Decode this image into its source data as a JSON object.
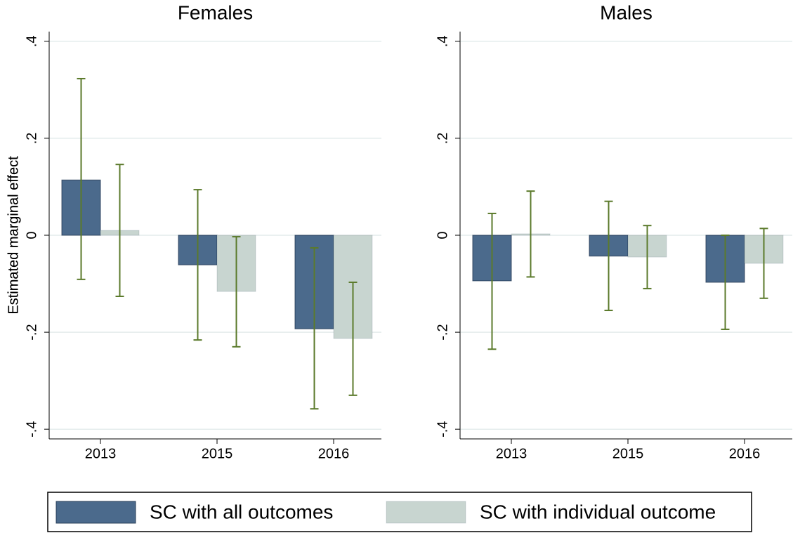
{
  "chart_data": [
    {
      "type": "bar",
      "title": "Females",
      "y_label": "Estimated marginal effect",
      "categories": [
        "2013",
        "2015",
        "2016"
      ],
      "series": [
        {
          "name": "SC with all outcomes",
          "color": "#4b6a8c",
          "values": [
            0.114,
            -0.061,
            -0.193
          ],
          "upper": [
            0.323,
            0.094,
            -0.026
          ],
          "lower": [
            -0.091,
            -0.216,
            -0.358
          ]
        },
        {
          "name": "SC with individual outcome",
          "color": "#c8d5d0",
          "values": [
            0.01,
            -0.116,
            -0.213
          ],
          "upper": [
            0.146,
            -0.003,
            -0.097
          ],
          "lower": [
            -0.126,
            -0.23,
            -0.33
          ]
        }
      ],
      "error_color": "#5b7a2b",
      "ylim": [
        -0.42,
        0.42
      ],
      "yticks": [
        {
          "value": -0.4,
          "label": "-.4"
        },
        {
          "value": -0.2,
          "label": "-.2"
        },
        0,
        {
          "value": 0.2,
          "label": ".2"
        },
        {
          "value": 0.4,
          "label": ".4"
        }
      ],
      "grid": true
    },
    {
      "type": "bar",
      "title": "Males",
      "y_label": "Estimated marginal effect",
      "categories": [
        "2013",
        "2015",
        "2016"
      ],
      "series": [
        {
          "color": "#4b6a8c",
          "values": [
            -0.094,
            -0.043,
            -0.097
          ],
          "upper": [
            0.045,
            0.07,
            0.0
          ],
          "lower": [
            -0.235,
            -0.155,
            -0.194
          ]
        },
        {
          "color": "#c8d5d0",
          "values": [
            0.003,
            -0.045,
            -0.058
          ],
          "upper": [
            0.091,
            0.02,
            0.014
          ],
          "lower": [
            -0.086,
            -0.11,
            -0.13
          ]
        }
      ],
      "error_color": "#5b7a2b",
      "ylim": [
        -0.42,
        0.42
      ],
      "yticks": [
        {
          "value": -0.4,
          "label": "-.4"
        },
        {
          "value": -0.2,
          "label": "-.2"
        },
        0,
        {
          "value": 0.2,
          "label": ".2"
        },
        {
          "value": 0.4,
          "label": ".4"
        }
      ],
      "grid": true
    }
  ]
}
